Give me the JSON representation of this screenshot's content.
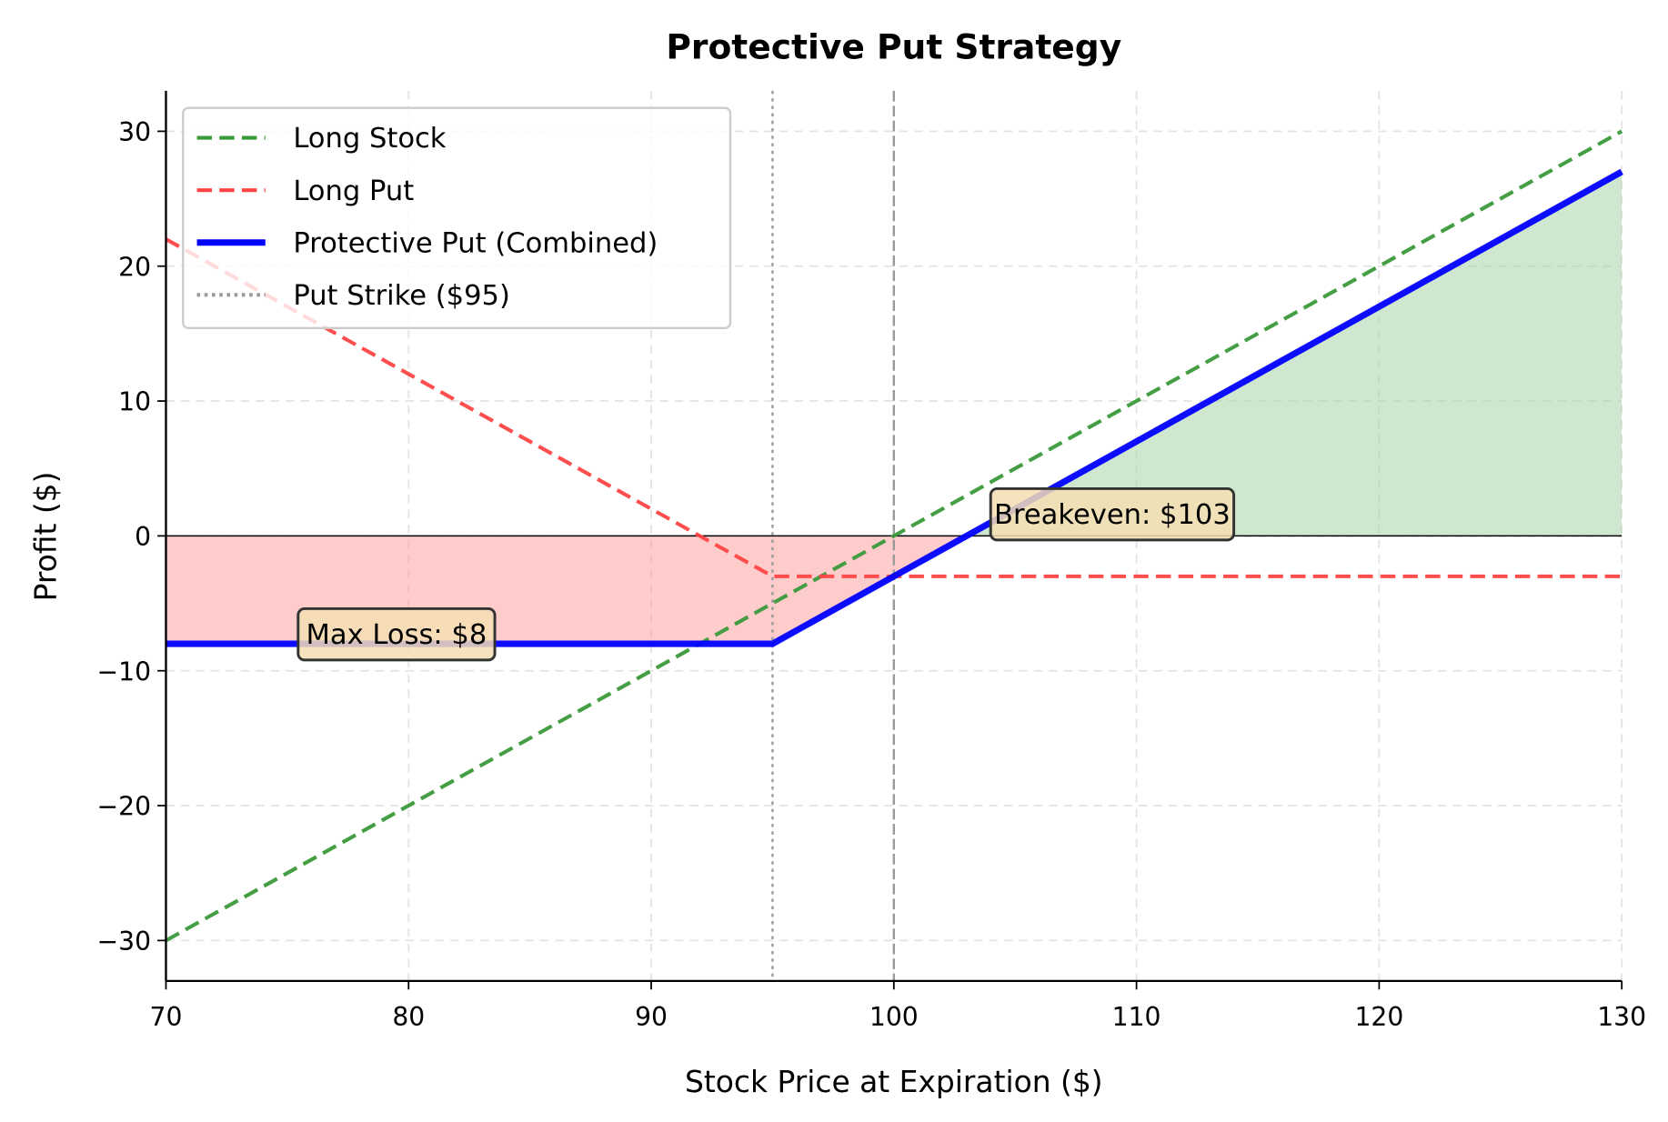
{
  "chart_data": {
    "type": "line",
    "title": "Protective Put Strategy",
    "xlabel": "Stock Price at Expiration ($)",
    "ylabel": "Profit ($)",
    "xlim": [
      70,
      130
    ],
    "ylim": [
      -33,
      33
    ],
    "xticks": [
      70,
      80,
      90,
      100,
      110,
      120,
      130
    ],
    "yticks": [
      -30,
      -20,
      -10,
      0,
      10,
      20,
      30
    ],
    "ytick_labels": [
      "−30",
      "−20",
      "−10",
      "0",
      "10",
      "20",
      "30"
    ],
    "grid": true,
    "legend_position": "top-left",
    "series": [
      {
        "name": "Long Stock",
        "color": "#3a9a3a",
        "style": "dashed",
        "x": [
          70,
          130
        ],
        "y": [
          -30,
          30
        ]
      },
      {
        "name": "Long Put",
        "color": "#ff4444",
        "style": "dashed",
        "x": [
          70,
          95,
          130
        ],
        "y": [
          22,
          -3,
          -3
        ]
      },
      {
        "name": "Protective Put (Combined)",
        "color": "#0000ff",
        "style": "solid",
        "x": [
          70,
          95,
          130
        ],
        "y": [
          -8,
          -8,
          27
        ]
      }
    ],
    "vlines": [
      {
        "name": "Put Strike ($95)",
        "x": 95,
        "color": "#999999",
        "style": "dotted",
        "in_legend": true
      },
      {
        "x": 100,
        "color": "#999999",
        "style": "dashed",
        "in_legend": false
      }
    ],
    "hline": {
      "y": 0,
      "color": "#000000"
    },
    "fills": [
      {
        "region": "loss",
        "color": "#ff9999",
        "between": "combined and 0 where combined < 0"
      },
      {
        "region": "profit",
        "color": "#a5d3a5",
        "between": "combined and 0 where combined > 0"
      }
    ],
    "annotations": [
      {
        "text": "Max Loss: $8",
        "x": 79.5,
        "y": -7.3
      },
      {
        "text": "Breakeven: $103",
        "x": 109,
        "y": 1.6
      }
    ]
  }
}
